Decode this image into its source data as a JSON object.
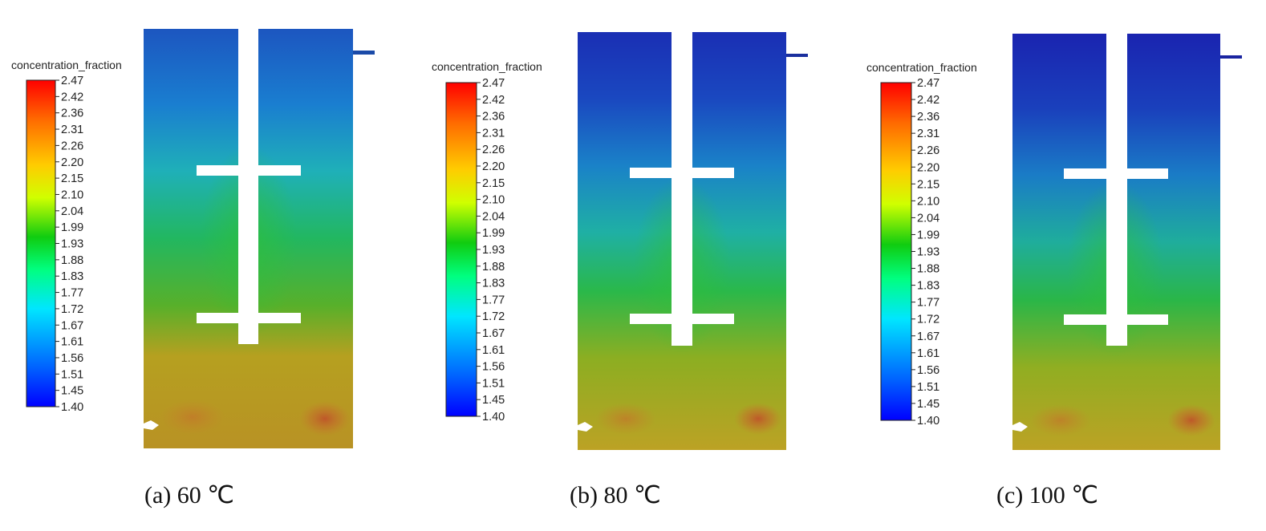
{
  "colorbar": {
    "title": "concentration_fraction",
    "ticks": [
      "2.47",
      "2.42",
      "2.36",
      "2.31",
      "2.26",
      "2.20",
      "2.15",
      "2.10",
      "2.04",
      "1.99",
      "1.93",
      "1.88",
      "1.83",
      "1.77",
      "1.72",
      "1.67",
      "1.61",
      "1.56",
      "1.51",
      "1.45",
      "1.40"
    ],
    "min": 1.4,
    "max": 2.47,
    "colormap": [
      "#0000ff",
      "#0072ff",
      "#00e4ff",
      "#00ff72",
      "#17c017",
      "#d8ff00",
      "#ffd400",
      "#ff7200",
      "#ff0000"
    ]
  },
  "panels": [
    {
      "caption": "(a) 60 ℃",
      "temperature_c": 60,
      "top_level": 1.55,
      "middle_level": 1.9,
      "bottom_level": 2.18
    },
    {
      "caption": "(b) 80 ℃",
      "temperature_c": 80,
      "top_level": 1.43,
      "middle_level": 1.86,
      "bottom_level": 2.16
    },
    {
      "caption": "(c) 100 ℃",
      "temperature_c": 100,
      "top_level": 1.42,
      "middle_level": 1.84,
      "bottom_level": 2.16
    }
  ]
}
